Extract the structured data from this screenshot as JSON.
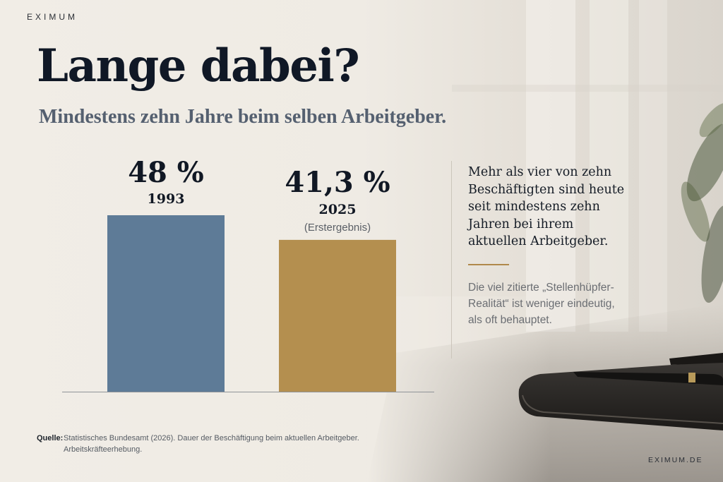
{
  "brand": "EXIMUM",
  "title": "Lange dabei?",
  "subtitle": "Mindestens zehn Jahre beim selben Arbeitgeber.",
  "chart_data": {
    "type": "bar",
    "categories": [
      "1993",
      "2025"
    ],
    "values": [
      48,
      41.3
    ],
    "value_labels": [
      "48 %",
      "41,3 %"
    ],
    "notes": [
      "",
      "(Erstergebnis)"
    ],
    "colors": [
      "#5e7b97",
      "#b48f4f"
    ],
    "ylim": [
      0,
      48
    ],
    "grid": false,
    "title": "",
    "xlabel": "",
    "ylabel": ""
  },
  "side": {
    "main": "Mehr als vier von zehn Beschäftigten sind heute seit mindestens zehn Jahren bei ihrem aktuellen Arbeitgeber.",
    "sub": "Die viel zitierte „Stellenhüpfer-Realität“ ist weniger eindeutig, als oft behauptet."
  },
  "source": {
    "label": "Quelle:",
    "text": "Statistisches Bundesamt (2026). Dauer der Beschäftigung beim aktuellen Arbeitgeber. Arbeitskräfteerhebung."
  },
  "website": "EXIMUM.DE"
}
